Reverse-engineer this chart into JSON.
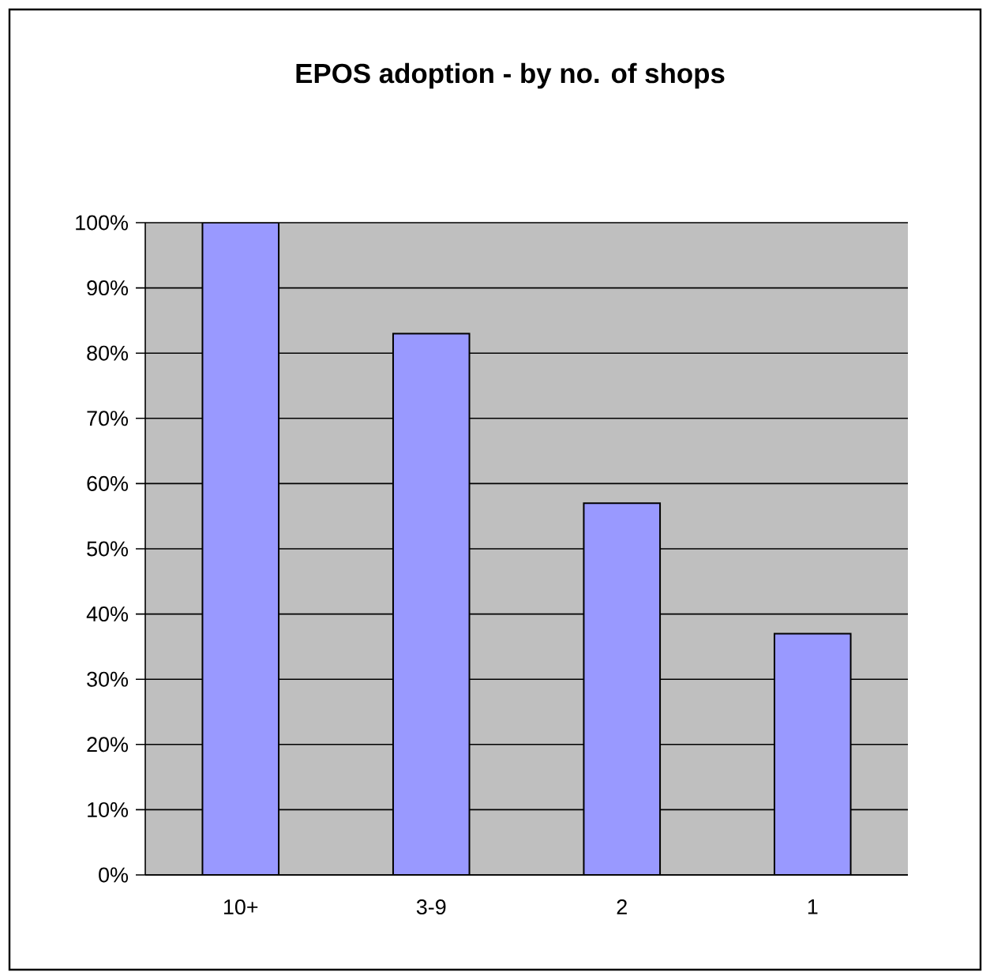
{
  "chart_data": {
    "type": "bar",
    "title": "EPOS adoption - by no. of shops",
    "categories": [
      "10+",
      "3-9",
      "2",
      "1"
    ],
    "values": [
      100,
      83,
      57,
      37
    ],
    "color": "#9999ff",
    "ylim": [
      0,
      100
    ],
    "yticks": [
      {
        "value": 0,
        "label": "0%"
      },
      {
        "value": 10,
        "label": "10%"
      },
      {
        "value": 20,
        "label": "20%"
      },
      {
        "value": 30,
        "label": "30%"
      },
      {
        "value": 40,
        "label": "40%"
      },
      {
        "value": 50,
        "label": "50%"
      },
      {
        "value": 60,
        "label": "60%"
      },
      {
        "value": 70,
        "label": "70%"
      },
      {
        "value": 80,
        "label": "80%"
      },
      {
        "value": 90,
        "label": "90%"
      },
      {
        "value": 100,
        "label": "100%"
      }
    ],
    "grid": "y"
  }
}
